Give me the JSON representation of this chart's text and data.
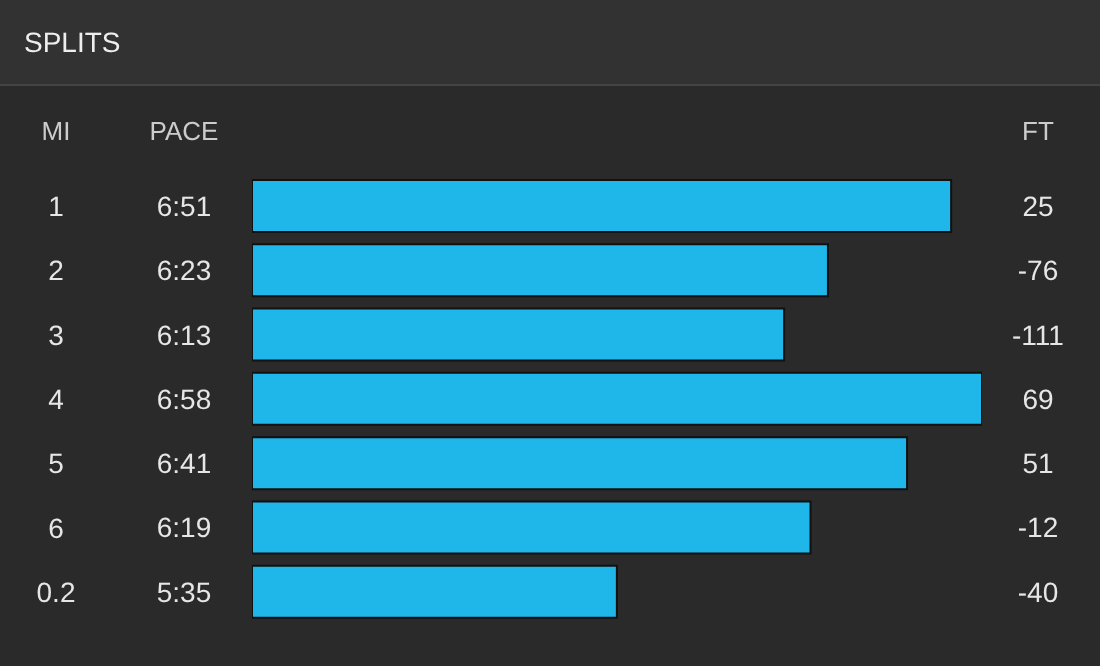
{
  "chart_data": {
    "type": "bar",
    "orientation": "horizontal",
    "title": "SPLITS",
    "ylabel": "MI",
    "categories": [
      "1",
      "2",
      "3",
      "4",
      "5",
      "6",
      "0.2"
    ],
    "values": [
      6.85,
      6.383,
      6.217,
      6.967,
      6.683,
      6.317,
      5.583
    ],
    "xlim": [
      4.2,
      6.967
    ],
    "color": "#1fb6ea",
    "value_labels": [
      "6:51",
      "6:23",
      "6:13",
      "6:58",
      "6:41",
      "6:19",
      "5:35"
    ],
    "annotations": [
      "PACE",
      "FT",
      "25",
      "-76",
      "-111",
      "69",
      "51",
      "-12",
      "-40"
    ]
  }
}
